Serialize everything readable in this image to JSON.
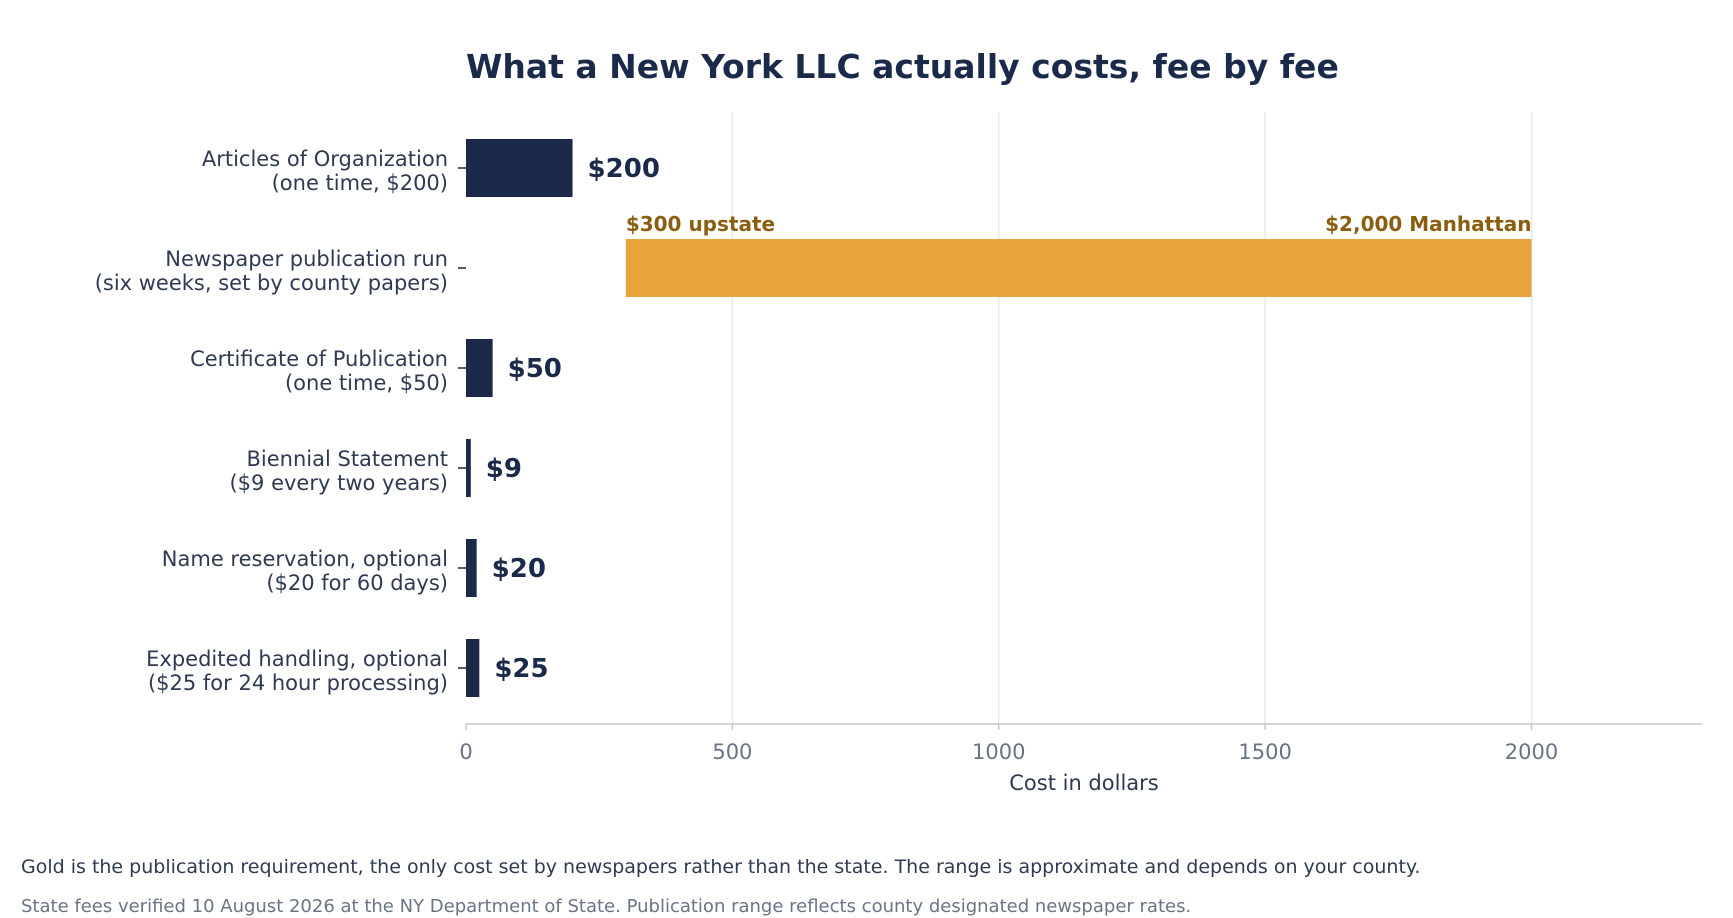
{
  "chart_data": {
    "type": "bar",
    "orientation": "horizontal",
    "title": "What a New York LLC actually costs, fee by fee",
    "xlabel": "Cost in dollars",
    "ylabel": "",
    "xlim": [
      0,
      2320
    ],
    "xticks": [
      0,
      500,
      1000,
      1500,
      2000
    ],
    "grid": true,
    "categories": [
      [
        "Articles of Organization",
        "(one time, $200)"
      ],
      [
        "Newspaper publication run",
        "(six weeks, set by county papers)"
      ],
      [
        "Certificate of Publication",
        "(one time, $50)"
      ],
      [
        "Biennial Statement",
        "($9 every two years)"
      ],
      [
        "Name reservation, optional",
        "($20 for 60 days)"
      ],
      [
        "Expedited handling, optional",
        "($25 for 24 hour processing)"
      ]
    ],
    "bars": [
      {
        "start": 0,
        "end": 200,
        "label": "$200"
      },
      {
        "start": 300,
        "end": 2000,
        "label_start": "$300 upstate",
        "label_end": "$2,000 Manhattan",
        "highlight": true
      },
      {
        "start": 0,
        "end": 50,
        "label": "$50"
      },
      {
        "start": 0,
        "end": 9,
        "label": "$9"
      },
      {
        "start": 0,
        "end": 20,
        "label": "$20"
      },
      {
        "start": 0,
        "end": 25,
        "label": "$25"
      }
    ],
    "colors": {
      "bar": "#1c2a4a",
      "highlight": "#e8a33c",
      "highlight_label": "#8a5e10",
      "title": "#1c2a4a",
      "category_text": "#2f3a52",
      "tick_text": "#6b7485",
      "grid": "#e6e8ec",
      "axis": "#c5c9d1"
    }
  },
  "notes": {
    "explanation": "Gold is the publication requirement, the only cost set by newspapers rather than the state. The range is approximate and depends on your county.",
    "source": "State fees verified 10 August 2026 at the NY Department of State. Publication range reflects county designated newspaper rates."
  }
}
